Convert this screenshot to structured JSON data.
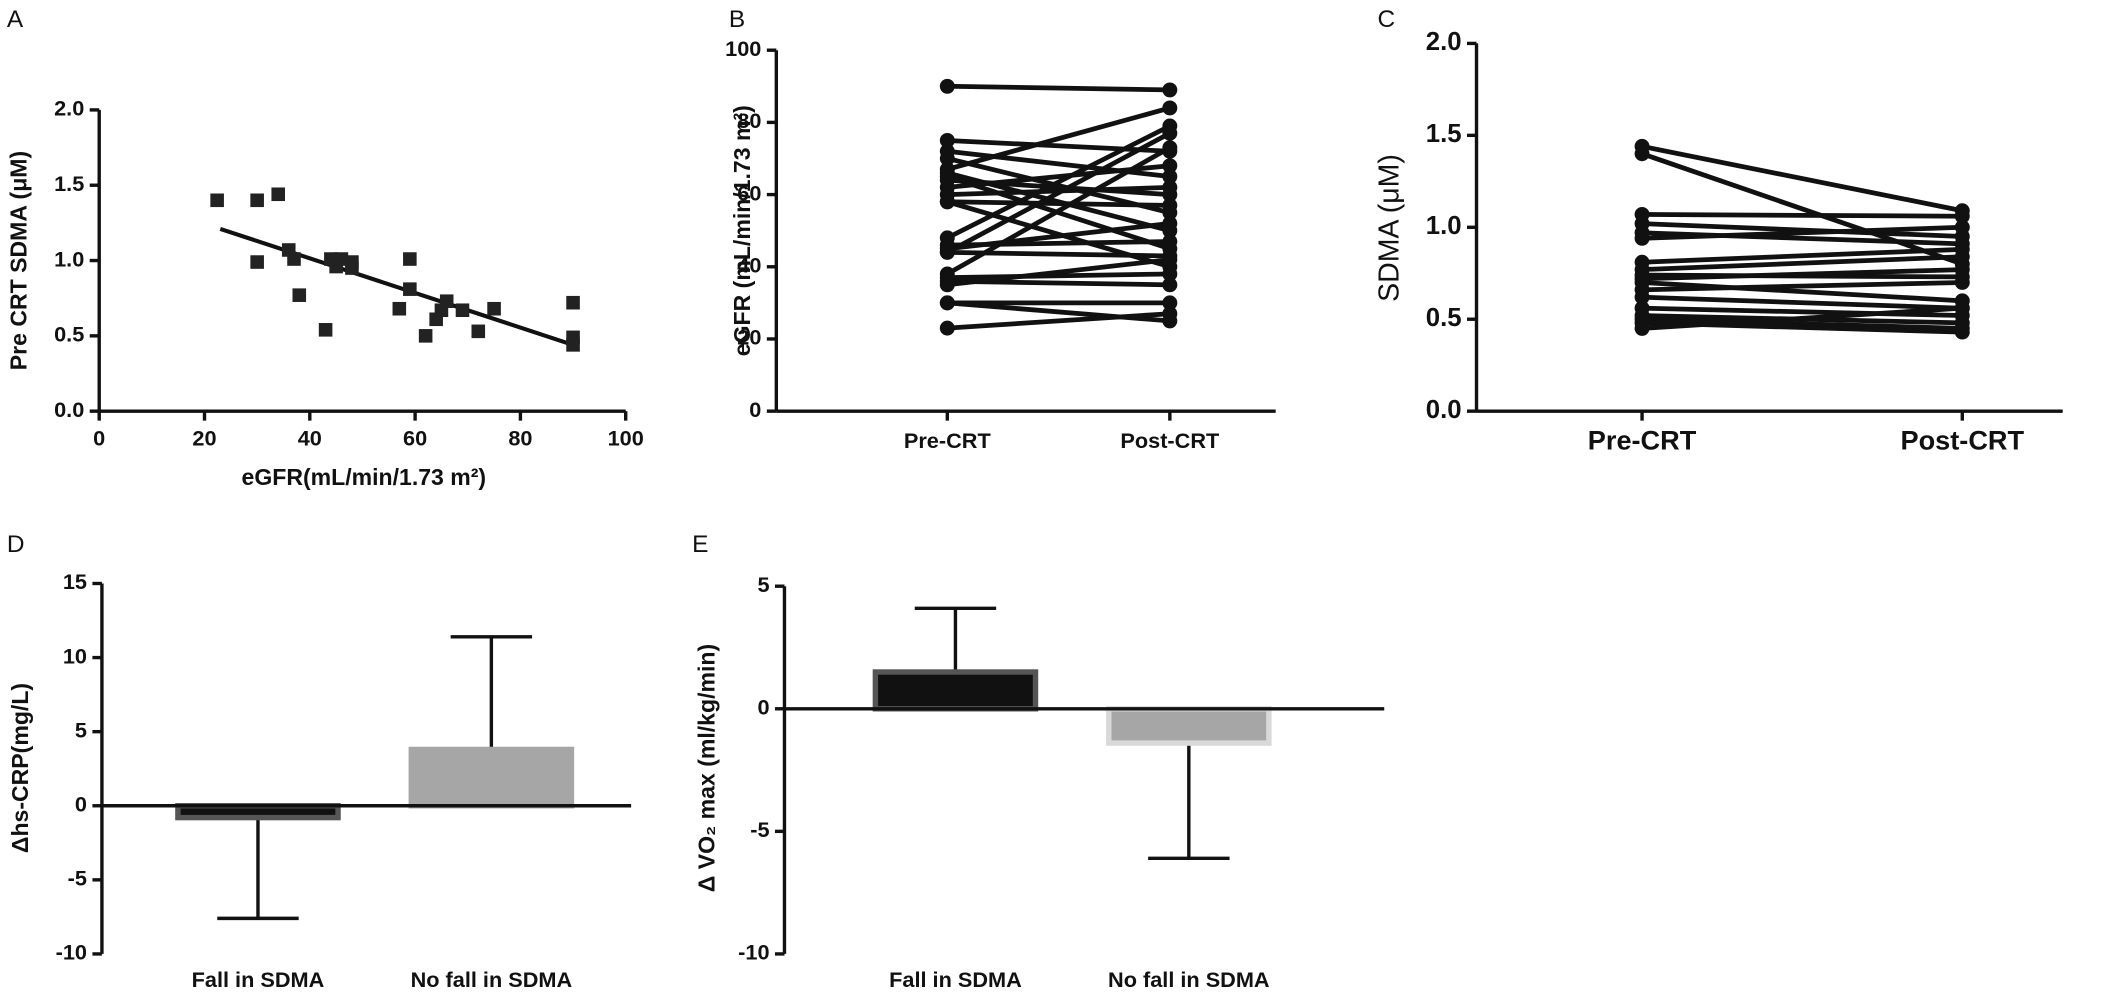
{
  "chart_data": [
    {
      "type": "scatter",
      "panel_label": "A",
      "x_label": "eGFR(mL/min/1.73 m²)",
      "y_label": "Pre CRT SDMA (μM)",
      "x": [
        22.4,
        30,
        30,
        34,
        36,
        37,
        38,
        43,
        44,
        45,
        46,
        48,
        48,
        59,
        59,
        57,
        62,
        64,
        65,
        66,
        69,
        72,
        75,
        90,
        90,
        90
      ],
      "values": [
        1.4,
        1.4,
        0.99,
        1.44,
        1.07,
        1.01,
        0.77,
        0.54,
        1.01,
        0.96,
        1.01,
        0.99,
        0.95,
        1.01,
        0.81,
        0.68,
        0.5,
        0.61,
        0.67,
        0.73,
        0.67,
        0.53,
        0.68,
        0.72,
        0.49,
        0.44
      ],
      "color": "#222222",
      "trendline": {
        "x": [
          23,
          90
        ],
        "values": [
          1.21,
          0.44
        ]
      },
      "xlim": [
        0,
        100
      ],
      "xticks": [
        0,
        20,
        40,
        60,
        80,
        100
      ],
      "ylim": [
        0,
        2
      ],
      "yticks": [
        {
          "value": 0,
          "label": "0.0"
        },
        0.5,
        {
          "value": 1,
          "label": "1.0"
        },
        1.5,
        {
          "value": 2,
          "label": "2.0"
        }
      ]
    },
    {
      "type": "line",
      "panel_label": "B",
      "y_label": "eGFR (mL/min/1.73 m²)",
      "categories": [
        "Pre-CRT",
        "Post-CRT"
      ],
      "pairs": [
        [
          90,
          89
        ],
        [
          75,
          72
        ],
        [
          72,
          65
        ],
        [
          70,
          55
        ],
        [
          67,
          84
        ],
        [
          66,
          50
        ],
        [
          65,
          45
        ],
        [
          64,
          60
        ],
        [
          62,
          68
        ],
        [
          60,
          62
        ],
        [
          58,
          57
        ],
        [
          58,
          40
        ],
        [
          48,
          79
        ],
        [
          46,
          47
        ],
        [
          45,
          52
        ],
        [
          44,
          77
        ],
        [
          44,
          43
        ],
        [
          38,
          73
        ],
        [
          37,
          38
        ],
        [
          36,
          35
        ],
        [
          35,
          42
        ],
        [
          30,
          30
        ],
        [
          30,
          25
        ],
        [
          23,
          27
        ]
      ],
      "color": "#111111",
      "ylim": [
        0,
        100
      ],
      "yticks": [
        0,
        20,
        40,
        60,
        80,
        100
      ]
    },
    {
      "type": "line",
      "panel_label": "C",
      "y_label": "SDMA (μM)",
      "categories": [
        "Pre-CRT",
        "Post-CRT"
      ],
      "pairs": [
        [
          1.44,
          1.09
        ],
        [
          1.4,
          0.8
        ],
        [
          1.07,
          1.06
        ],
        [
          1.02,
          0.95
        ],
        [
          0.97,
          0.91
        ],
        [
          0.94,
          1.0
        ],
        [
          0.81,
          0.88
        ],
        [
          0.77,
          0.84
        ],
        [
          0.74,
          0.73
        ],
        [
          0.72,
          0.77
        ],
        [
          0.7,
          0.6
        ],
        [
          0.66,
          0.7
        ],
        [
          0.62,
          0.56
        ],
        [
          0.56,
          0.52
        ],
        [
          0.52,
          0.48
        ],
        [
          0.5,
          0.45
        ],
        [
          0.48,
          0.43
        ],
        [
          0.45,
          0.56
        ]
      ],
      "color": "#111111",
      "ylim": [
        0,
        2
      ],
      "yticks": [
        {
          "value": 0,
          "label": "0.0"
        },
        0.5,
        {
          "value": 1,
          "label": "1.0"
        },
        1.5,
        {
          "value": 2,
          "label": "2.0"
        }
      ]
    },
    {
      "type": "bar",
      "panel_label": "D",
      "y_label": "Δhs-CRP(mg/L)",
      "categories": [
        "Fall in SDMA",
        "No fall in SDMA"
      ],
      "values": [
        -0.8,
        3.8
      ],
      "errors": [
        6.8,
        7.6
      ],
      "colors": [
        "#111111",
        "#a6a6a6"
      ],
      "edge_colors": [
        "#555555",
        "#a6a6a6"
      ],
      "ylim": [
        -10,
        15
      ],
      "yticks": [
        -10,
        -5,
        0,
        5,
        10,
        15
      ]
    },
    {
      "type": "bar",
      "panel_label": "E",
      "y_label": "Δ VO₂ max (ml/kg/min)",
      "categories": [
        "Fall in SDMA",
        "No fall in SDMA"
      ],
      "values": [
        1.5,
        -1.4
      ],
      "errors": [
        2.6,
        4.7
      ],
      "colors": [
        "#111111",
        "#a6a6a6"
      ],
      "edge_colors": [
        "#555555",
        "#d9d9d9"
      ],
      "ylim": [
        -10,
        5
      ],
      "yticks": [
        -10,
        -5,
        0,
        5
      ]
    }
  ]
}
